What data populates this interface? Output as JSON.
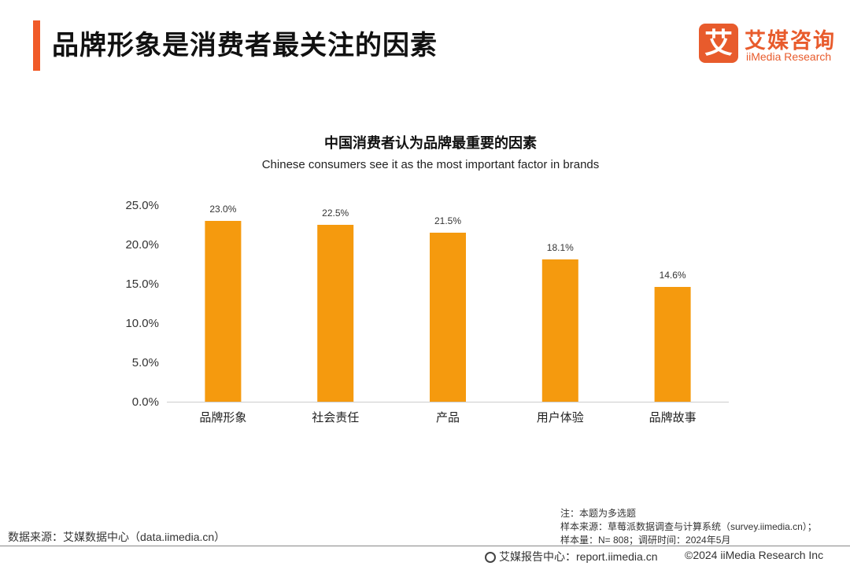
{
  "header": {
    "title": "品牌形象是消费者最关注的因素",
    "logo_mark": "艾",
    "logo_cn": "艾媒咨询",
    "logo_en": "iiMedia Research",
    "accent_color": "#f05a28"
  },
  "chart_data": {
    "type": "bar",
    "title": "中国消费者认为品牌最重要的因素",
    "subtitle": "Chinese consumers see it as the most important factor in brands",
    "categories": [
      "品牌形象",
      "社会责任",
      "产品",
      "用户体验",
      "品牌故事"
    ],
    "values": [
      23.0,
      22.5,
      21.5,
      18.1,
      14.6
    ],
    "value_labels": [
      "23.0%",
      "22.5%",
      "21.5%",
      "18.1%",
      "14.6%"
    ],
    "yticks": [
      "0.0%",
      "5.0%",
      "10.0%",
      "15.0%",
      "20.0%",
      "25.0%"
    ],
    "ylim": [
      0,
      25
    ],
    "bar_color": "#f59a0e",
    "grid": false
  },
  "notes": {
    "line1": "注：本题为多选题",
    "line2": "样本来源：草莓派数据调查与计算系统（survey.iimedia.cn）；",
    "line3": "样本量：N= 808；调研时间：2024年5月"
  },
  "footer": {
    "source": "数据来源：艾媒数据中心（data.iimedia.cn）",
    "report": "艾媒报告中心：report.iimedia.cn",
    "copyright": "©2024  iiMedia Research  Inc"
  }
}
